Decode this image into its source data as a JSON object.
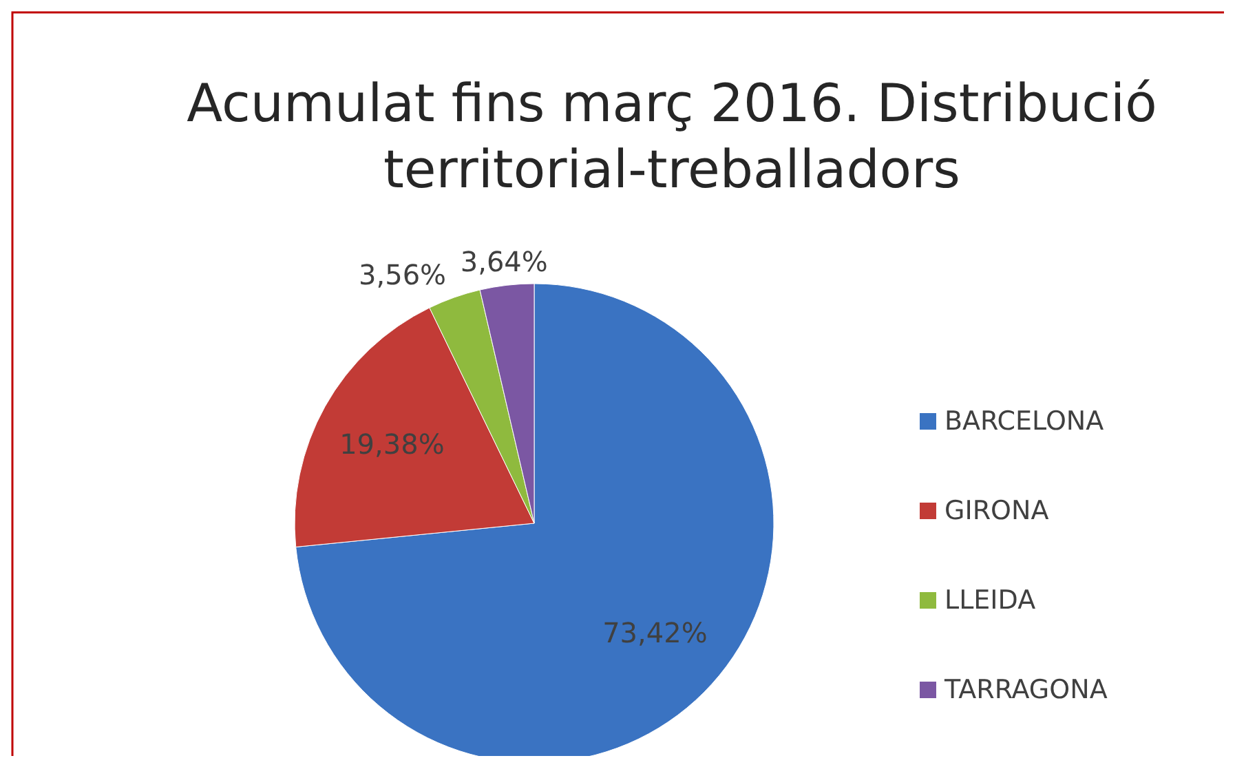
{
  "chart_data": {
    "type": "pie",
    "title": "Acumulat fins març 2016. Distribució territorial-treballadors",
    "categories": [
      "BARCELONA",
      "GIRONA",
      "LLEIDA",
      "TARRAGONA"
    ],
    "values": [
      73.42,
      19.38,
      3.56,
      3.64
    ],
    "colors": [
      "#3a73c2",
      "#c23b36",
      "#8fba3e",
      "#7b57a3"
    ],
    "value_labels": [
      "73,42%",
      "19,38%",
      "3,56%",
      "3,64%"
    ],
    "legend": "right"
  }
}
